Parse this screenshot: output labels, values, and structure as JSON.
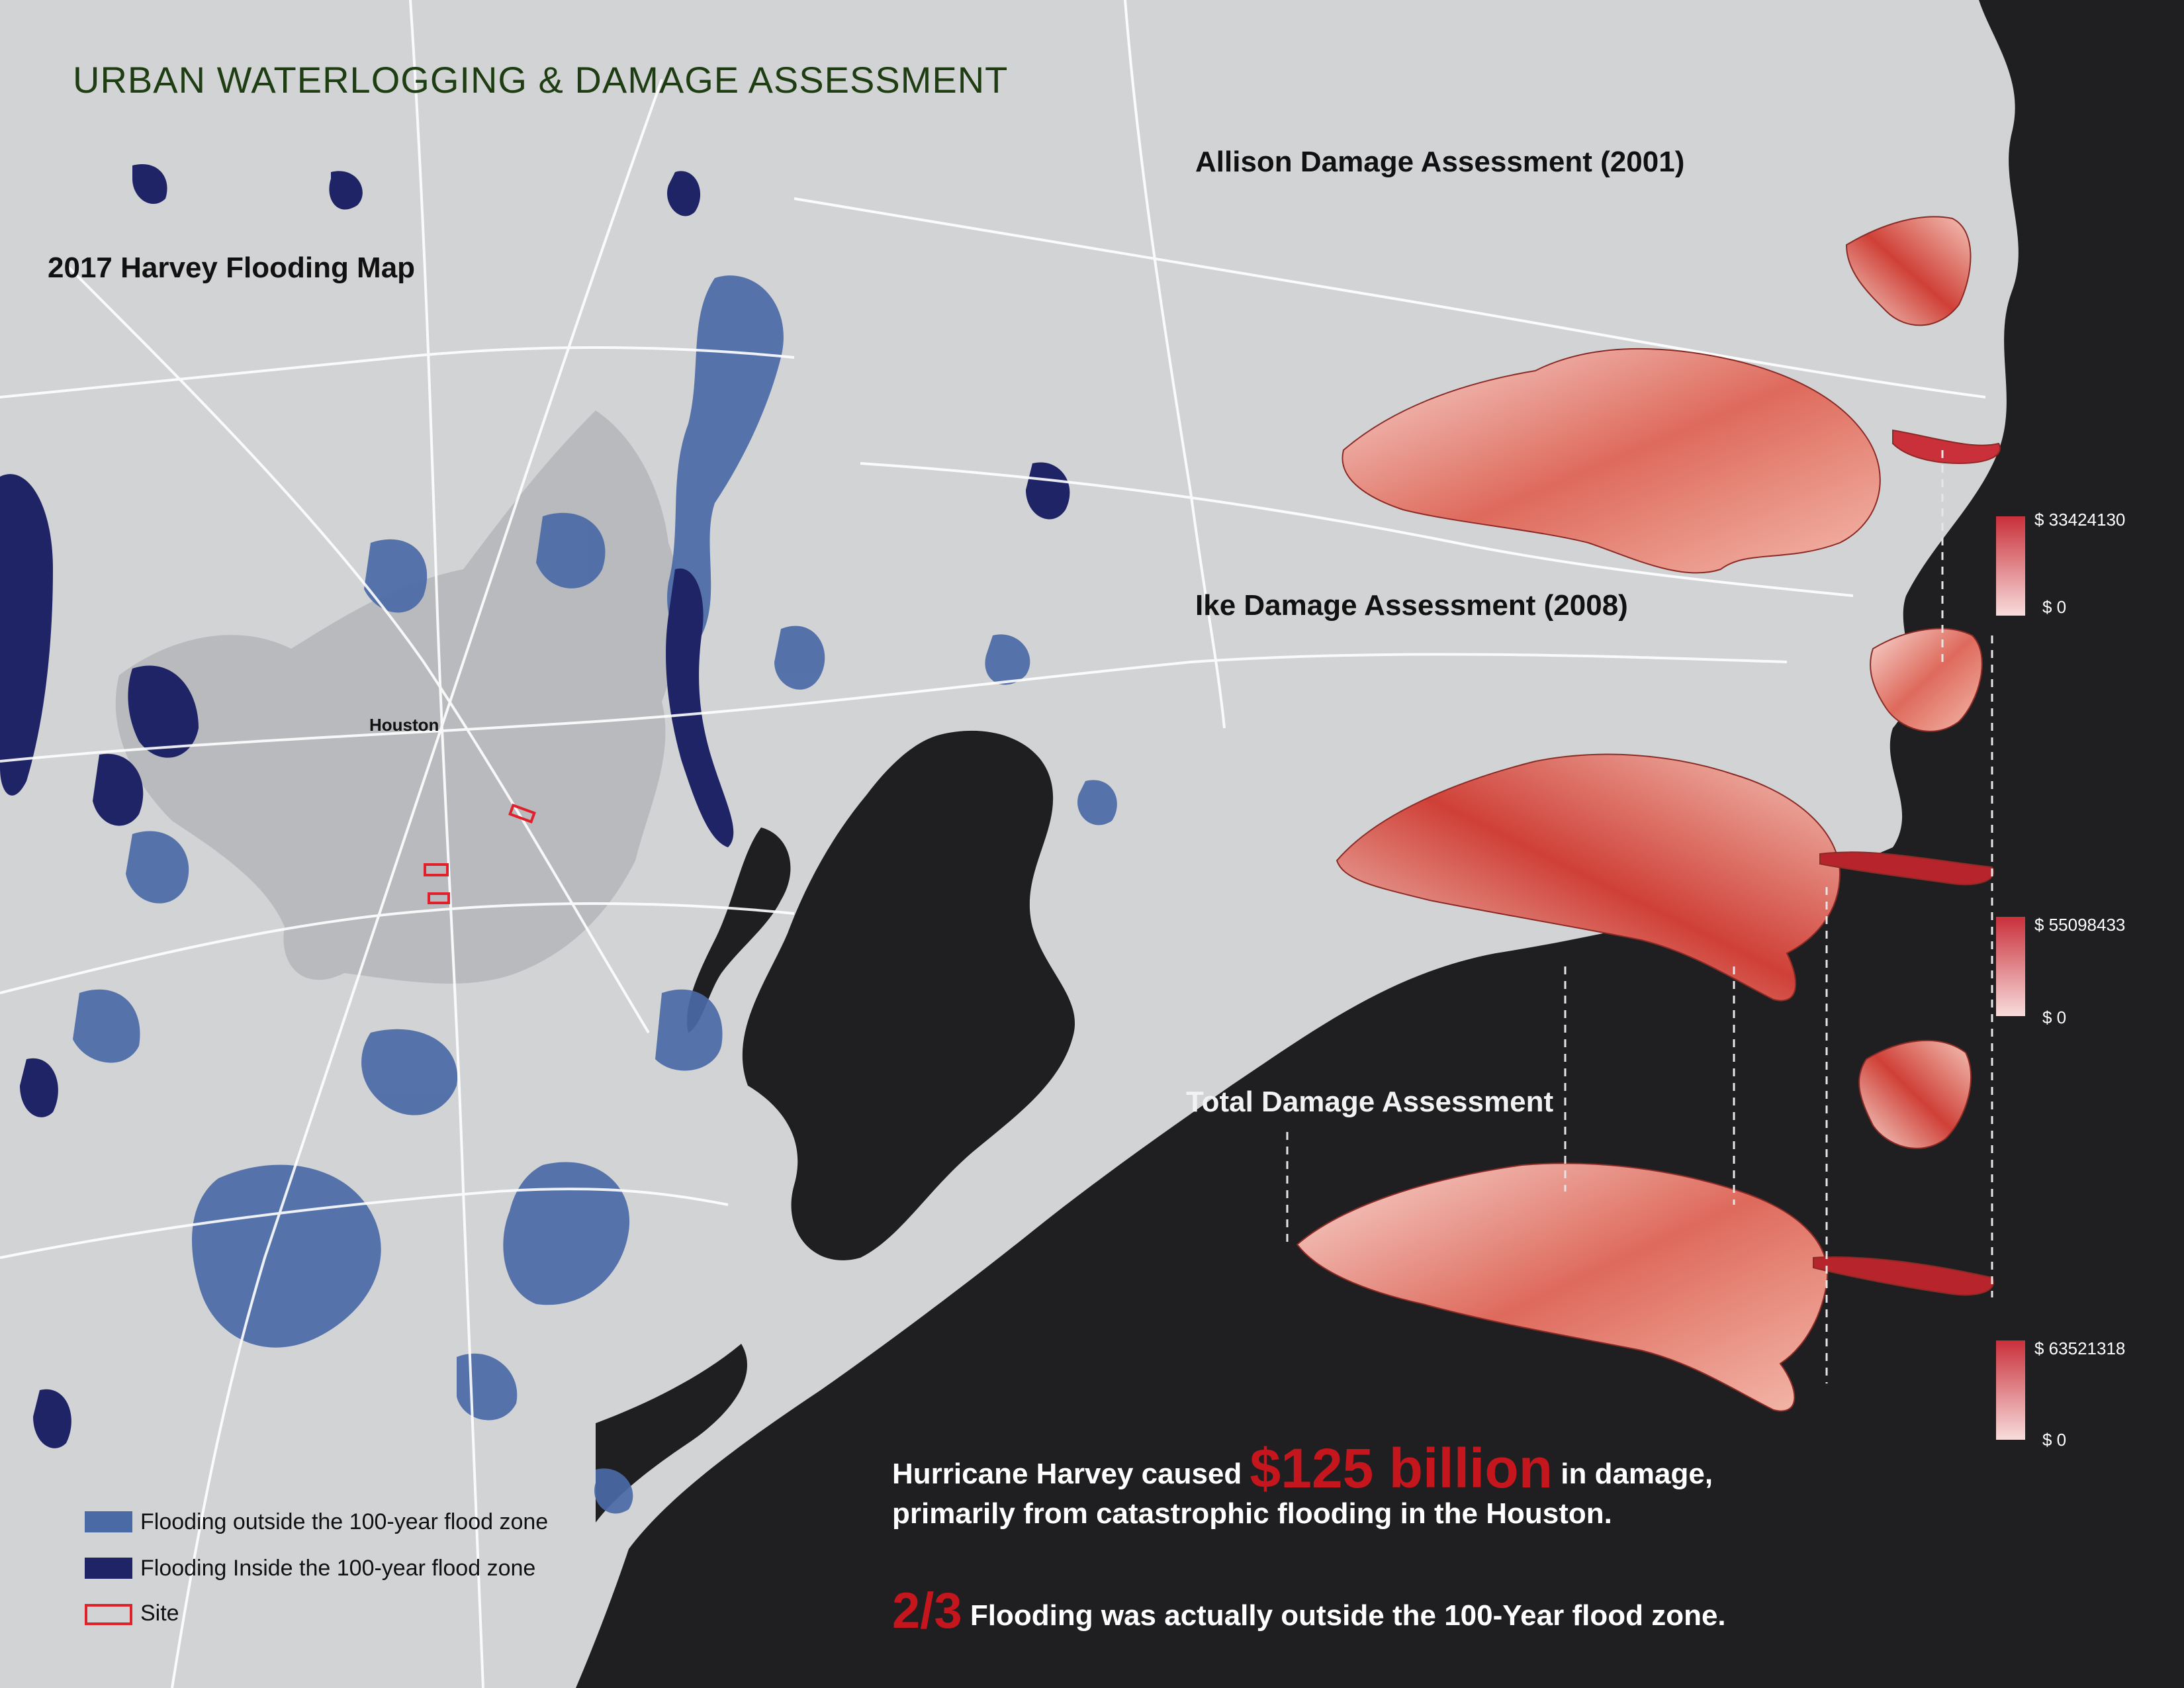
{
  "title": "URBAN WATERLOGGING & DAMAGE ASSESSMENT",
  "map": {
    "flood_map_title": "2017 Harvey Flooding Map",
    "city_label": "Houston"
  },
  "assessments": [
    {
      "title": "Allison Damage Assessment (2001)",
      "max_label": "$ 33424130",
      "min_label": "$ 0"
    },
    {
      "title": "Ike Damage Assessment (2008)",
      "max_label": "$ 55098433",
      "min_label": "$ 0"
    },
    {
      "title": "Total Damage Assessment",
      "max_label": "$ 63521318",
      "min_label": "$ 0"
    }
  ],
  "summary": {
    "line1_pre": "Hurricane Harvey caused",
    "line1_amount": "$125 billion",
    "line1_post": "in damage,",
    "line2": "primarily from catastrophic flooding in the Houston.",
    "line3_fraction": "2/3",
    "line3_text": "Flooding was actually outside the 100-Year flood zone."
  },
  "legend": [
    {
      "label": "Flooding outside the 100-year flood zone",
      "color": "#4a6aa6"
    },
    {
      "label": "Flooding Inside the 100-year flood zone",
      "color": "#1e2466"
    },
    {
      "label": "Site",
      "color": "#e0202a"
    }
  ],
  "colors": {
    "land": "#d2d3d5",
    "sea": "#1f1f21",
    "urban_area": "#b8b9bc",
    "roads": "#ffffff",
    "damage_high": "#c9303a",
    "damage_low": "#f8dcdc"
  }
}
